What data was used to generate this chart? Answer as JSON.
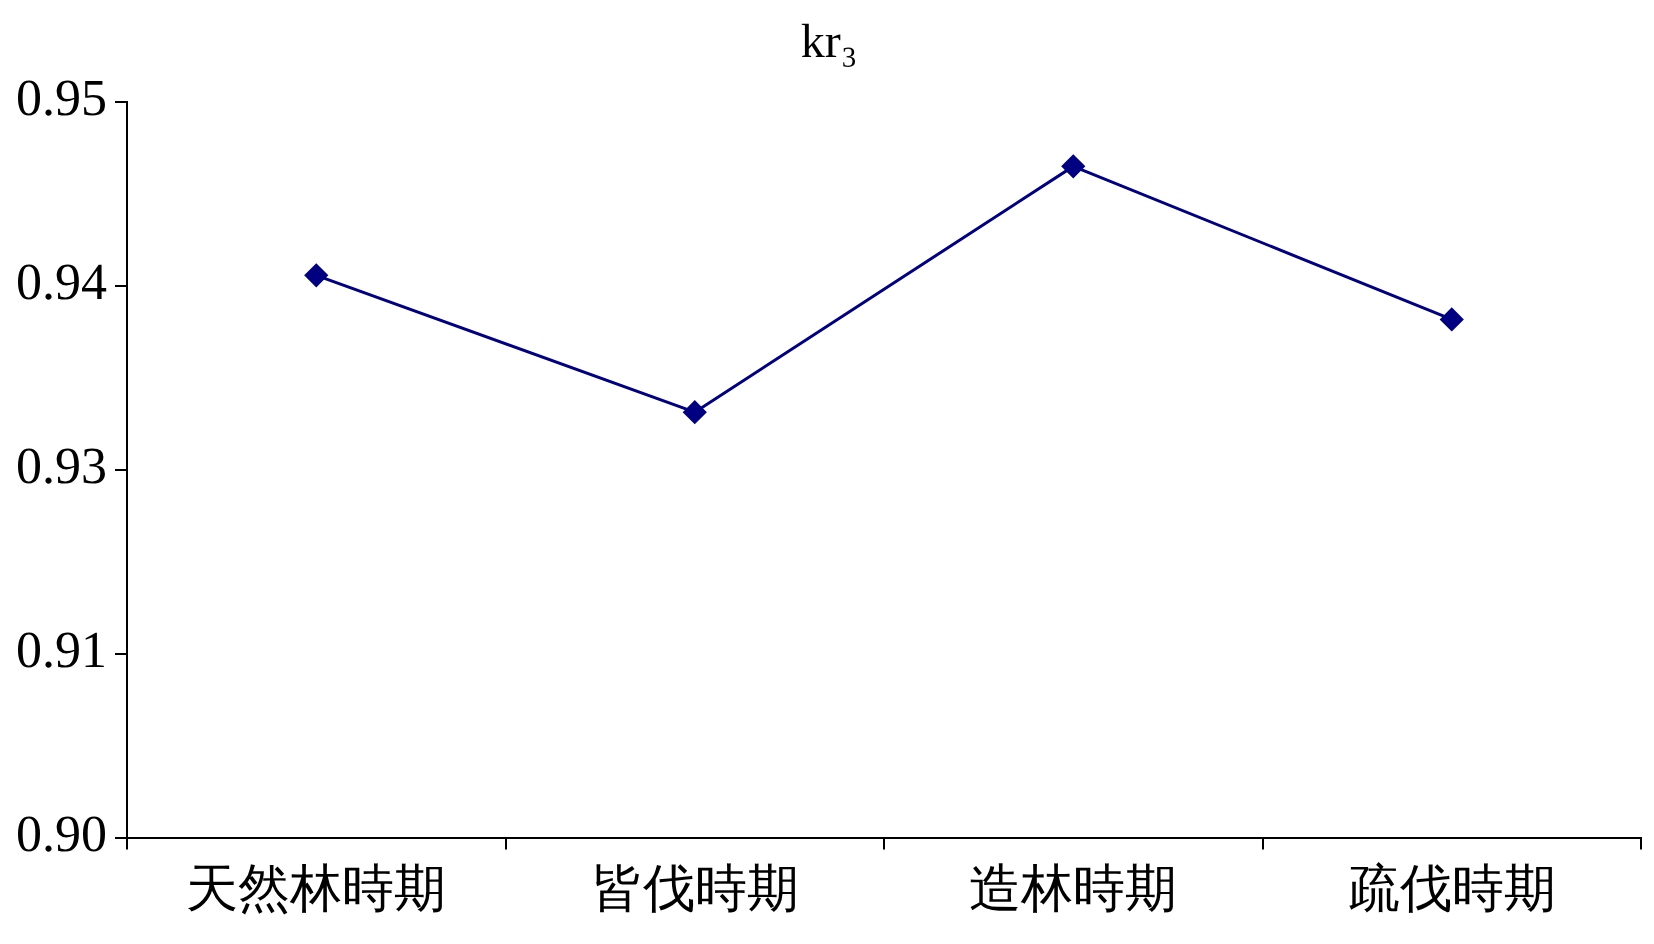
{
  "chart_data": {
    "type": "line",
    "title": "kr₃",
    "categories": [
      "天然林時期",
      "皆伐時期",
      "造林時期",
      "疏伐時期"
    ],
    "series": [
      {
        "color": "#000080",
        "values": [
          0.9382,
          0.9289,
          0.9456,
          0.9352
        ]
      }
    ],
    "ylim": [
      0.9,
      0.95
    ],
    "yticks": [
      {
        "value": 0.9,
        "label": "0.90"
      },
      {
        "value": 0.9125,
        "label": "0.91"
      },
      {
        "value": 0.925,
        "label": "0.93"
      },
      {
        "value": 0.9375,
        "label": "0.94"
      },
      {
        "value": 0.95,
        "label": "0.95"
      }
    ],
    "grid": false,
    "legend": false,
    "marker": "diamond",
    "line_style": "solid"
  }
}
